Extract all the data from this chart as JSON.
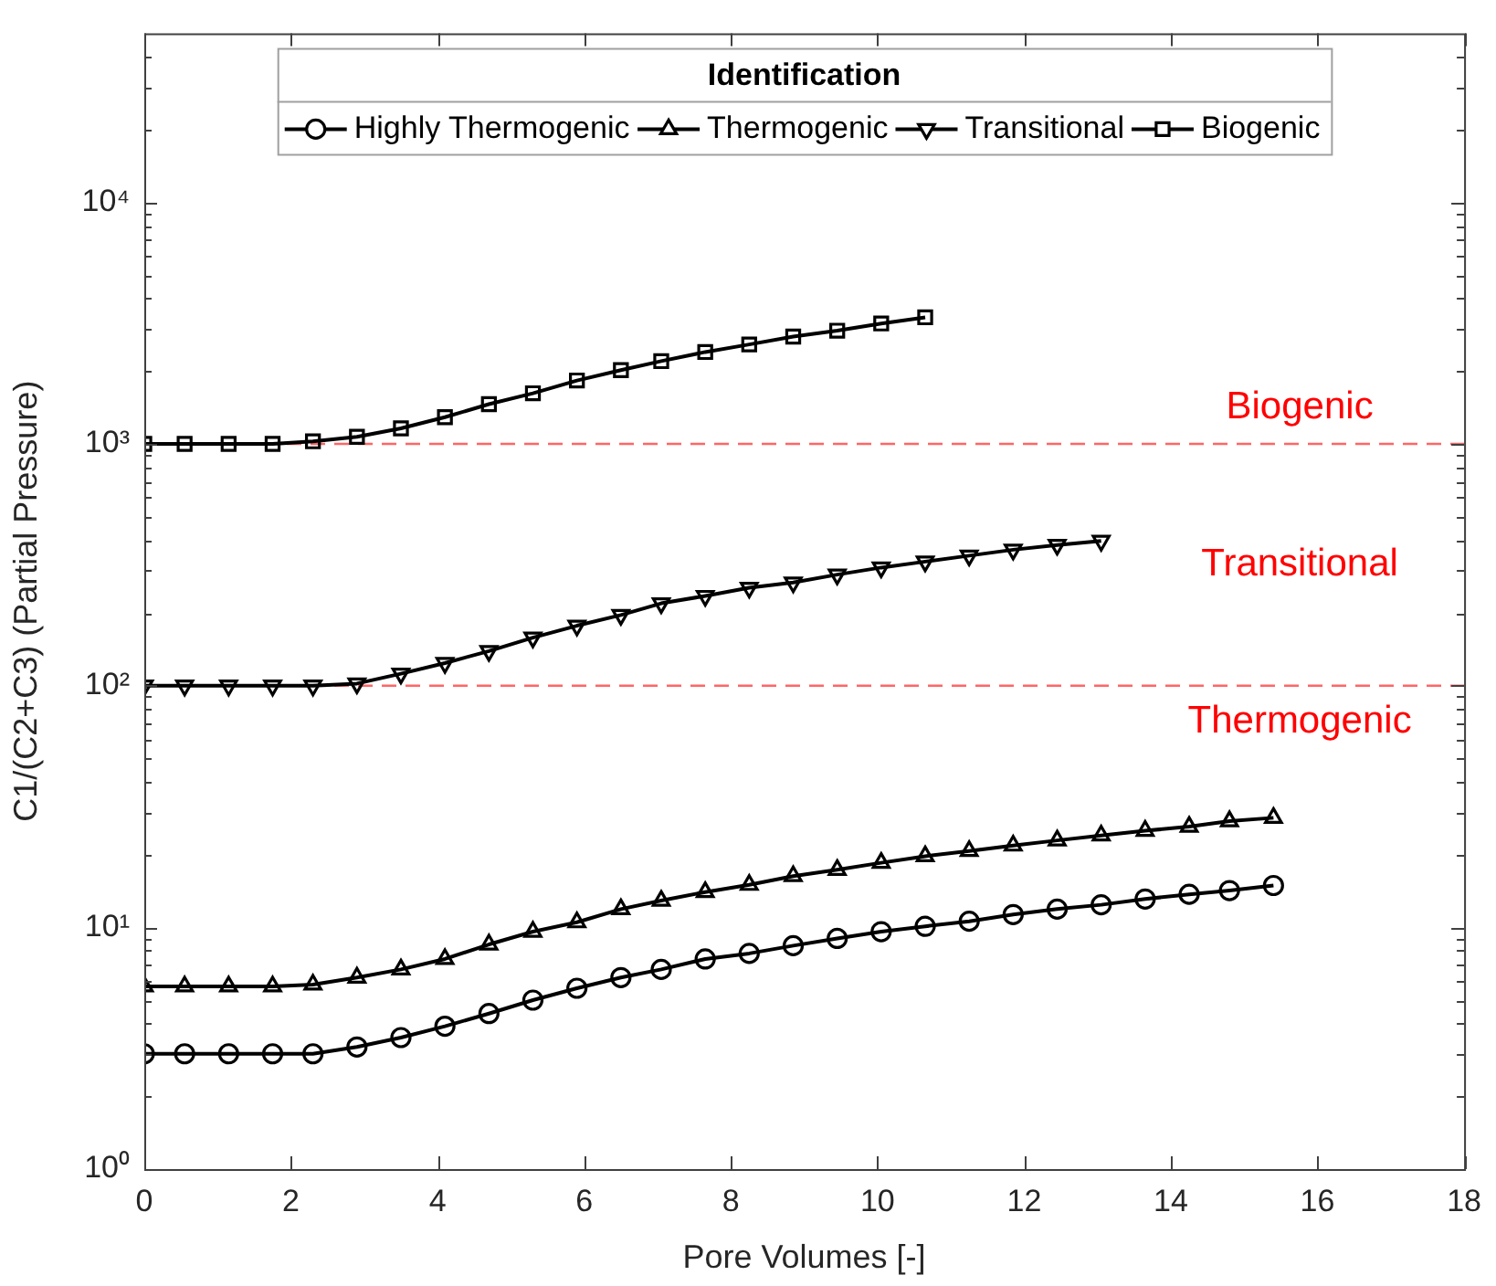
{
  "chart_data": {
    "type": "line",
    "xlabel": "Pore Volumes [-]",
    "ylabel": "C1/(C2+C3) (Partial Pressure)",
    "legend_title": "Identification",
    "legend": "top",
    "log": "y",
    "grid": false,
    "line_style": "solid",
    "xlim": [
      0,
      18
    ],
    "xticks": [
      0,
      2,
      4,
      6,
      8,
      10,
      12,
      14,
      16,
      18
    ],
    "ylim": [
      1,
      50000
    ],
    "yticks": [
      {
        "value": 1,
        "label": "10⁰"
      },
      {
        "value": 2,
        "label": null
      },
      {
        "value": 3,
        "label": null
      },
      {
        "value": 4,
        "label": null
      },
      {
        "value": 5,
        "label": null
      },
      {
        "value": 6,
        "label": null
      },
      {
        "value": 7,
        "label": null
      },
      {
        "value": 8,
        "label": null
      },
      {
        "value": 9,
        "label": null
      },
      {
        "value": 10,
        "label": "10¹"
      },
      {
        "value": 20,
        "label": null
      },
      {
        "value": 30,
        "label": null
      },
      {
        "value": 40,
        "label": null
      },
      {
        "value": 50,
        "label": null
      },
      {
        "value": 60,
        "label": null
      },
      {
        "value": 70,
        "label": null
      },
      {
        "value": 80,
        "label": null
      },
      {
        "value": 90,
        "label": null
      },
      {
        "value": 100,
        "label": "10²"
      },
      {
        "value": 200,
        "label": null
      },
      {
        "value": 300,
        "label": null
      },
      {
        "value": 400,
        "label": null
      },
      {
        "value": 500,
        "label": null
      },
      {
        "value": 600,
        "label": null
      },
      {
        "value": 700,
        "label": null
      },
      {
        "value": 800,
        "label": null
      },
      {
        "value": 900,
        "label": null
      },
      {
        "value": 1000,
        "label": "10³"
      },
      {
        "value": 2000,
        "label": null
      },
      {
        "value": 3000,
        "label": null
      },
      {
        "value": 4000,
        "label": null
      },
      {
        "value": 5000,
        "label": null
      },
      {
        "value": 6000,
        "label": null
      },
      {
        "value": 7000,
        "label": null
      },
      {
        "value": 8000,
        "label": null
      },
      {
        "value": 9000,
        "label": null
      },
      {
        "value": 10000,
        "label": "10⁴"
      },
      {
        "value": 20000,
        "label": null
      },
      {
        "value": 30000,
        "label": null
      },
      {
        "value": 40000,
        "label": null
      }
    ],
    "series": [
      {
        "name": "Highly Thermogenic",
        "color": "#000000",
        "marker": "circle",
        "x": [
          0,
          0.55,
          1.15,
          1.75,
          2.3,
          2.9,
          3.5,
          4.1,
          4.7,
          5.3,
          5.9,
          6.5,
          7.05,
          7.65,
          8.25,
          8.85,
          9.45,
          10.05,
          10.65,
          11.25,
          11.85,
          12.45,
          13.05,
          13.65,
          14.25,
          14.8,
          15.4
        ],
        "values": [
          3,
          3,
          3,
          3,
          3,
          3.2,
          3.5,
          3.9,
          4.4,
          5,
          5.6,
          6.2,
          6.7,
          7.4,
          7.8,
          8.4,
          9,
          9.6,
          10.1,
          10.6,
          11.3,
          11.9,
          12.4,
          13.1,
          13.7,
          14.2,
          14.9
        ]
      },
      {
        "name": "Thermogenic",
        "color": "#000000",
        "marker": "triangle",
        "x": [
          0,
          0.55,
          1.15,
          1.75,
          2.3,
          2.9,
          3.5,
          4.1,
          4.7,
          5.3,
          5.9,
          6.5,
          7.05,
          7.65,
          8.25,
          8.85,
          9.45,
          10.05,
          10.65,
          11.25,
          11.85,
          12.45,
          13.05,
          13.65,
          14.25,
          14.8,
          15.4
        ],
        "values": [
          5.7,
          5.7,
          5.7,
          5.7,
          5.8,
          6.2,
          6.7,
          7.4,
          8.5,
          9.6,
          10.5,
          11.9,
          12.9,
          14,
          15,
          16.3,
          17.3,
          18.5,
          19.7,
          20.7,
          21.8,
          22.9,
          24,
          25.1,
          26.1,
          27.5,
          28.4
        ]
      },
      {
        "name": "Transitional",
        "color": "#000000",
        "marker": "triangle-down",
        "x": [
          0,
          0.55,
          1.15,
          1.75,
          2.3,
          2.9,
          3.5,
          4.1,
          4.7,
          5.3,
          5.9,
          6.5,
          7.05,
          7.65,
          8.25,
          8.85,
          9.45,
          10.05,
          10.65,
          11.25,
          11.85,
          12.45,
          13.05
        ],
        "values": [
          100,
          100,
          100,
          100,
          100,
          102,
          112,
          124,
          139,
          158,
          177,
          196,
          219,
          235,
          254,
          267,
          288,
          308,
          326,
          345,
          365,
          382,
          397
        ]
      },
      {
        "name": "Biogenic",
        "color": "#000000",
        "marker": "square",
        "x": [
          0,
          0.55,
          1.15,
          1.75,
          2.3,
          2.9,
          3.5,
          4.1,
          4.7,
          5.3,
          5.9,
          6.5,
          7.05,
          7.65,
          8.25,
          8.85,
          9.45,
          10.05,
          10.65
        ],
        "values": [
          1000,
          1000,
          1000,
          1000,
          1025,
          1070,
          1160,
          1290,
          1460,
          1620,
          1830,
          2020,
          2200,
          2400,
          2580,
          2780,
          2940,
          3150,
          3340
        ]
      }
    ],
    "ref_lines": [
      {
        "axis": "y",
        "value": 1000,
        "color": "#ff6666",
        "line_style": "dashed"
      },
      {
        "axis": "y",
        "value": 100,
        "color": "#ff6666",
        "line_style": "dashed"
      }
    ],
    "annotations": [
      "Biogenic",
      "Transitional",
      "Thermogenic"
    ]
  }
}
